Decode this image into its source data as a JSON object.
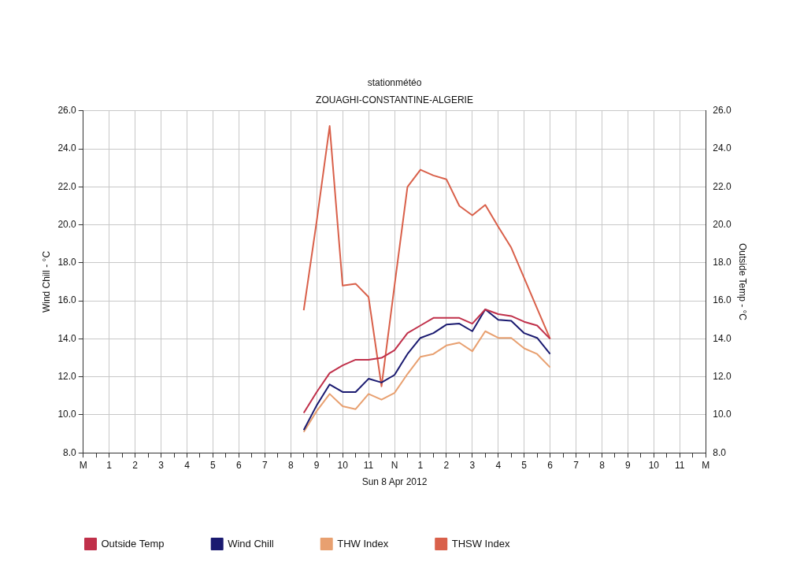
{
  "chart_data": {
    "type": "line",
    "title": "stationmétéo",
    "subtitle": "ZOUAGHI-CONSTANTINE-ALGERIE",
    "xlabel": "Sun 8 Apr 2012",
    "ylabel": "Wind Chill - °C",
    "y2label": "Outside Temp - °C",
    "categories": [
      "M",
      null,
      "1",
      null,
      "2",
      null,
      "3",
      null,
      "4",
      null,
      "5",
      null,
      "6",
      null,
      "7",
      null,
      "8",
      null,
      "9",
      null,
      "10",
      null,
      "11",
      null,
      "N",
      null,
      "1",
      null,
      "2",
      null,
      "3",
      null,
      "4",
      null,
      "5",
      null,
      "6",
      null,
      "7",
      null,
      "8",
      null,
      "9",
      null,
      "10",
      null,
      "11",
      null,
      "M"
    ],
    "ylim": [
      8,
      26
    ],
    "yticks": [
      {
        "value": 8,
        "label": "8.0"
      },
      {
        "value": 10,
        "label": "10.0"
      },
      {
        "value": 12,
        "label": "12.0"
      },
      {
        "value": 14,
        "label": "14.0"
      },
      {
        "value": 16,
        "label": "16.0"
      },
      {
        "value": 18,
        "label": "18.0"
      },
      {
        "value": 20,
        "label": "20.0"
      },
      {
        "value": 22,
        "label": "22.0"
      },
      {
        "value": 24,
        "label": "24.0"
      },
      {
        "value": 26,
        "label": "26.0"
      }
    ],
    "y2lim": [
      8,
      26
    ],
    "y2ticks": [
      {
        "value": 8,
        "label": "8.0"
      },
      {
        "value": 10,
        "label": "10.0"
      },
      {
        "value": 12,
        "label": "12.0"
      },
      {
        "value": 14,
        "label": "14.0"
      },
      {
        "value": 16,
        "label": "16.0"
      },
      {
        "value": 18,
        "label": "18.0"
      },
      {
        "value": 20,
        "label": "20.0"
      },
      {
        "value": 22,
        "label": "22.0"
      },
      {
        "value": 24,
        "label": "24.0"
      },
      {
        "value": 26,
        "label": "26.0"
      }
    ],
    "grid": true,
    "legend": "bottom",
    "marker": "none",
    "line_style": "solid",
    "series": [
      {
        "name": "Outside Temp",
        "color": "#c0304a",
        "axis": "y2",
        "values": [
          null,
          null,
          null,
          null,
          null,
          null,
          null,
          null,
          null,
          null,
          null,
          null,
          null,
          null,
          null,
          null,
          null,
          10.1,
          11.2,
          12.2,
          12.6,
          12.9,
          12.9,
          13.0,
          13.4,
          14.3,
          14.7,
          15.1,
          15.1,
          15.1,
          14.8,
          15.55,
          15.3,
          15.2,
          14.9,
          14.7,
          14.0,
          null,
          null,
          null,
          null,
          null,
          null,
          null,
          null,
          null,
          null,
          null,
          null
        ]
      },
      {
        "name": "Wind Chill",
        "color": "#1a1a70",
        "values": [
          null,
          null,
          null,
          null,
          null,
          null,
          null,
          null,
          null,
          null,
          null,
          null,
          null,
          null,
          null,
          null,
          null,
          9.2,
          10.5,
          11.6,
          11.2,
          11.2,
          11.9,
          11.7,
          12.1,
          13.2,
          14.05,
          14.3,
          14.75,
          14.8,
          14.4,
          15.55,
          15.0,
          14.95,
          14.3,
          14.05,
          13.2,
          null,
          null,
          null,
          null,
          null,
          null,
          null,
          null,
          null,
          null,
          null,
          null
        ]
      },
      {
        "name": "THW Index",
        "color": "#e8a070",
        "values": [
          null,
          null,
          null,
          null,
          null,
          null,
          null,
          null,
          null,
          null,
          null,
          null,
          null,
          null,
          null,
          null,
          null,
          9.1,
          10.2,
          11.1,
          10.45,
          10.3,
          11.1,
          10.8,
          11.15,
          12.15,
          13.05,
          13.2,
          13.65,
          13.8,
          13.35,
          14.4,
          14.05,
          14.05,
          13.5,
          13.2,
          12.5,
          null,
          null,
          null,
          null,
          null,
          null,
          null,
          null,
          null,
          null,
          null,
          null
        ]
      },
      {
        "name": "THSW Index",
        "color": "#d9604a",
        "values": [
          null,
          null,
          null,
          null,
          null,
          null,
          null,
          null,
          null,
          null,
          null,
          null,
          null,
          null,
          null,
          null,
          null,
          15.5,
          20.2,
          25.2,
          16.8,
          16.9,
          16.2,
          11.5,
          16.8,
          22.0,
          22.9,
          22.6,
          22.4,
          21.0,
          20.5,
          21.05,
          19.9,
          18.8,
          17.2,
          15.6,
          14.0,
          null,
          null,
          null,
          null,
          null,
          null,
          null,
          null,
          null,
          null,
          null,
          null
        ]
      }
    ]
  }
}
